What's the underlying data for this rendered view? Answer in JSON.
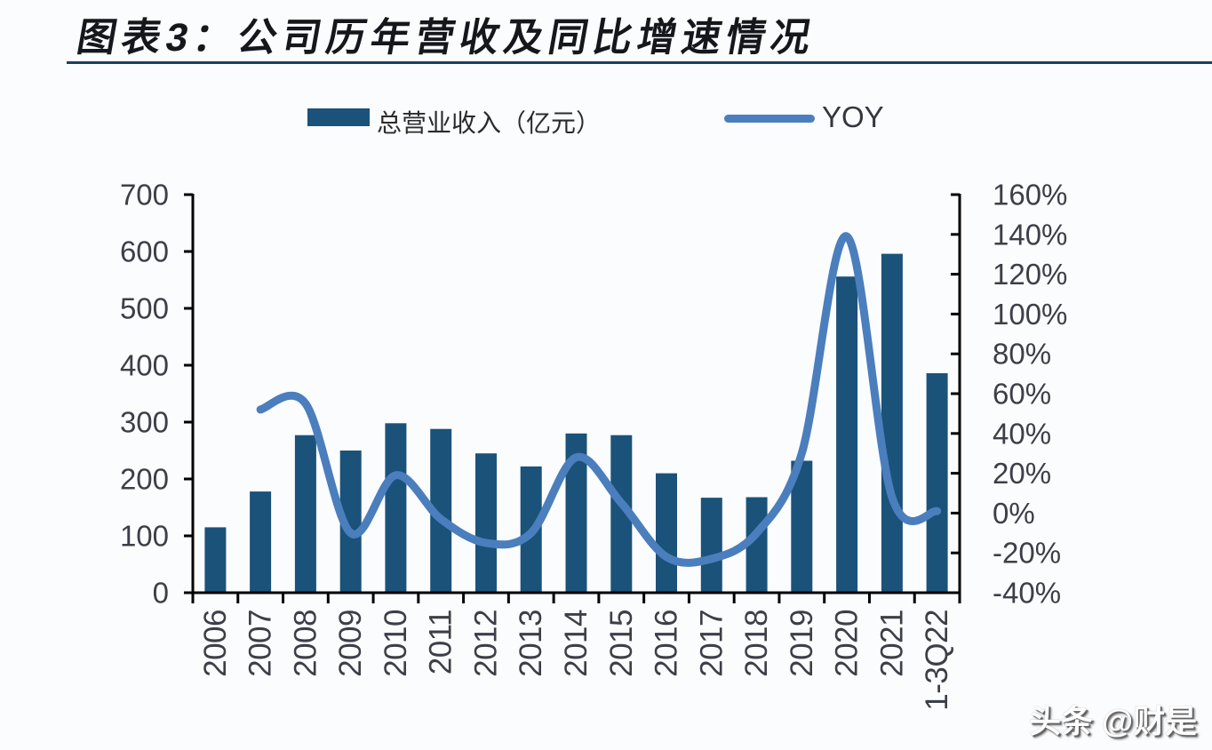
{
  "page": {
    "background": "#FBFCFE"
  },
  "header": {
    "title": "图表3：公司历年营收及同比增速情况"
  },
  "legend": {
    "bar_label": "总营业收入（亿元）",
    "line_label": "YOY"
  },
  "watermark": {
    "text": "头条 @财是"
  },
  "chart_data": {
    "type": "bar+line",
    "categories": [
      "2006",
      "2007",
      "2008",
      "2009",
      "2010",
      "2011",
      "2012",
      "2013",
      "2014",
      "2015",
      "2016",
      "2017",
      "2018",
      "2019",
      "2020",
      "2021",
      "1-3Q22"
    ],
    "series": [
      {
        "name": "总营业收入（亿元）",
        "type": "bar",
        "axis": "left",
        "values": [
          115,
          178,
          277,
          250,
          298,
          288,
          245,
          222,
          280,
          277,
          210,
          167,
          168,
          232,
          556,
          596,
          386
        ]
      },
      {
        "name": "YOY",
        "type": "line",
        "axis": "right",
        "unit": "%",
        "values": [
          null,
          52,
          55,
          -10,
          19,
          -3,
          -15,
          -10,
          28,
          5,
          -22,
          -23,
          -10,
          30,
          139,
          8,
          1
        ]
      }
    ],
    "left_axis": {
      "min": 0,
      "max": 700,
      "step": 100,
      "tick_labels": [
        "0",
        "100",
        "200",
        "300",
        "400",
        "500",
        "600",
        "700"
      ]
    },
    "right_axis": {
      "min": -40,
      "max": 160,
      "step": 20,
      "tick_labels": [
        "-40%",
        "-20%",
        "0%",
        "20%",
        "40%",
        "60%",
        "80%",
        "100%",
        "120%",
        "140%",
        "160%"
      ]
    },
    "grid": false,
    "legend_position": "top",
    "colors": {
      "bar": "#1B527A",
      "line": "#4A7EBD",
      "axis": "#000000",
      "tick_text": "#3C3F48",
      "rule": "#1D3E60"
    }
  }
}
